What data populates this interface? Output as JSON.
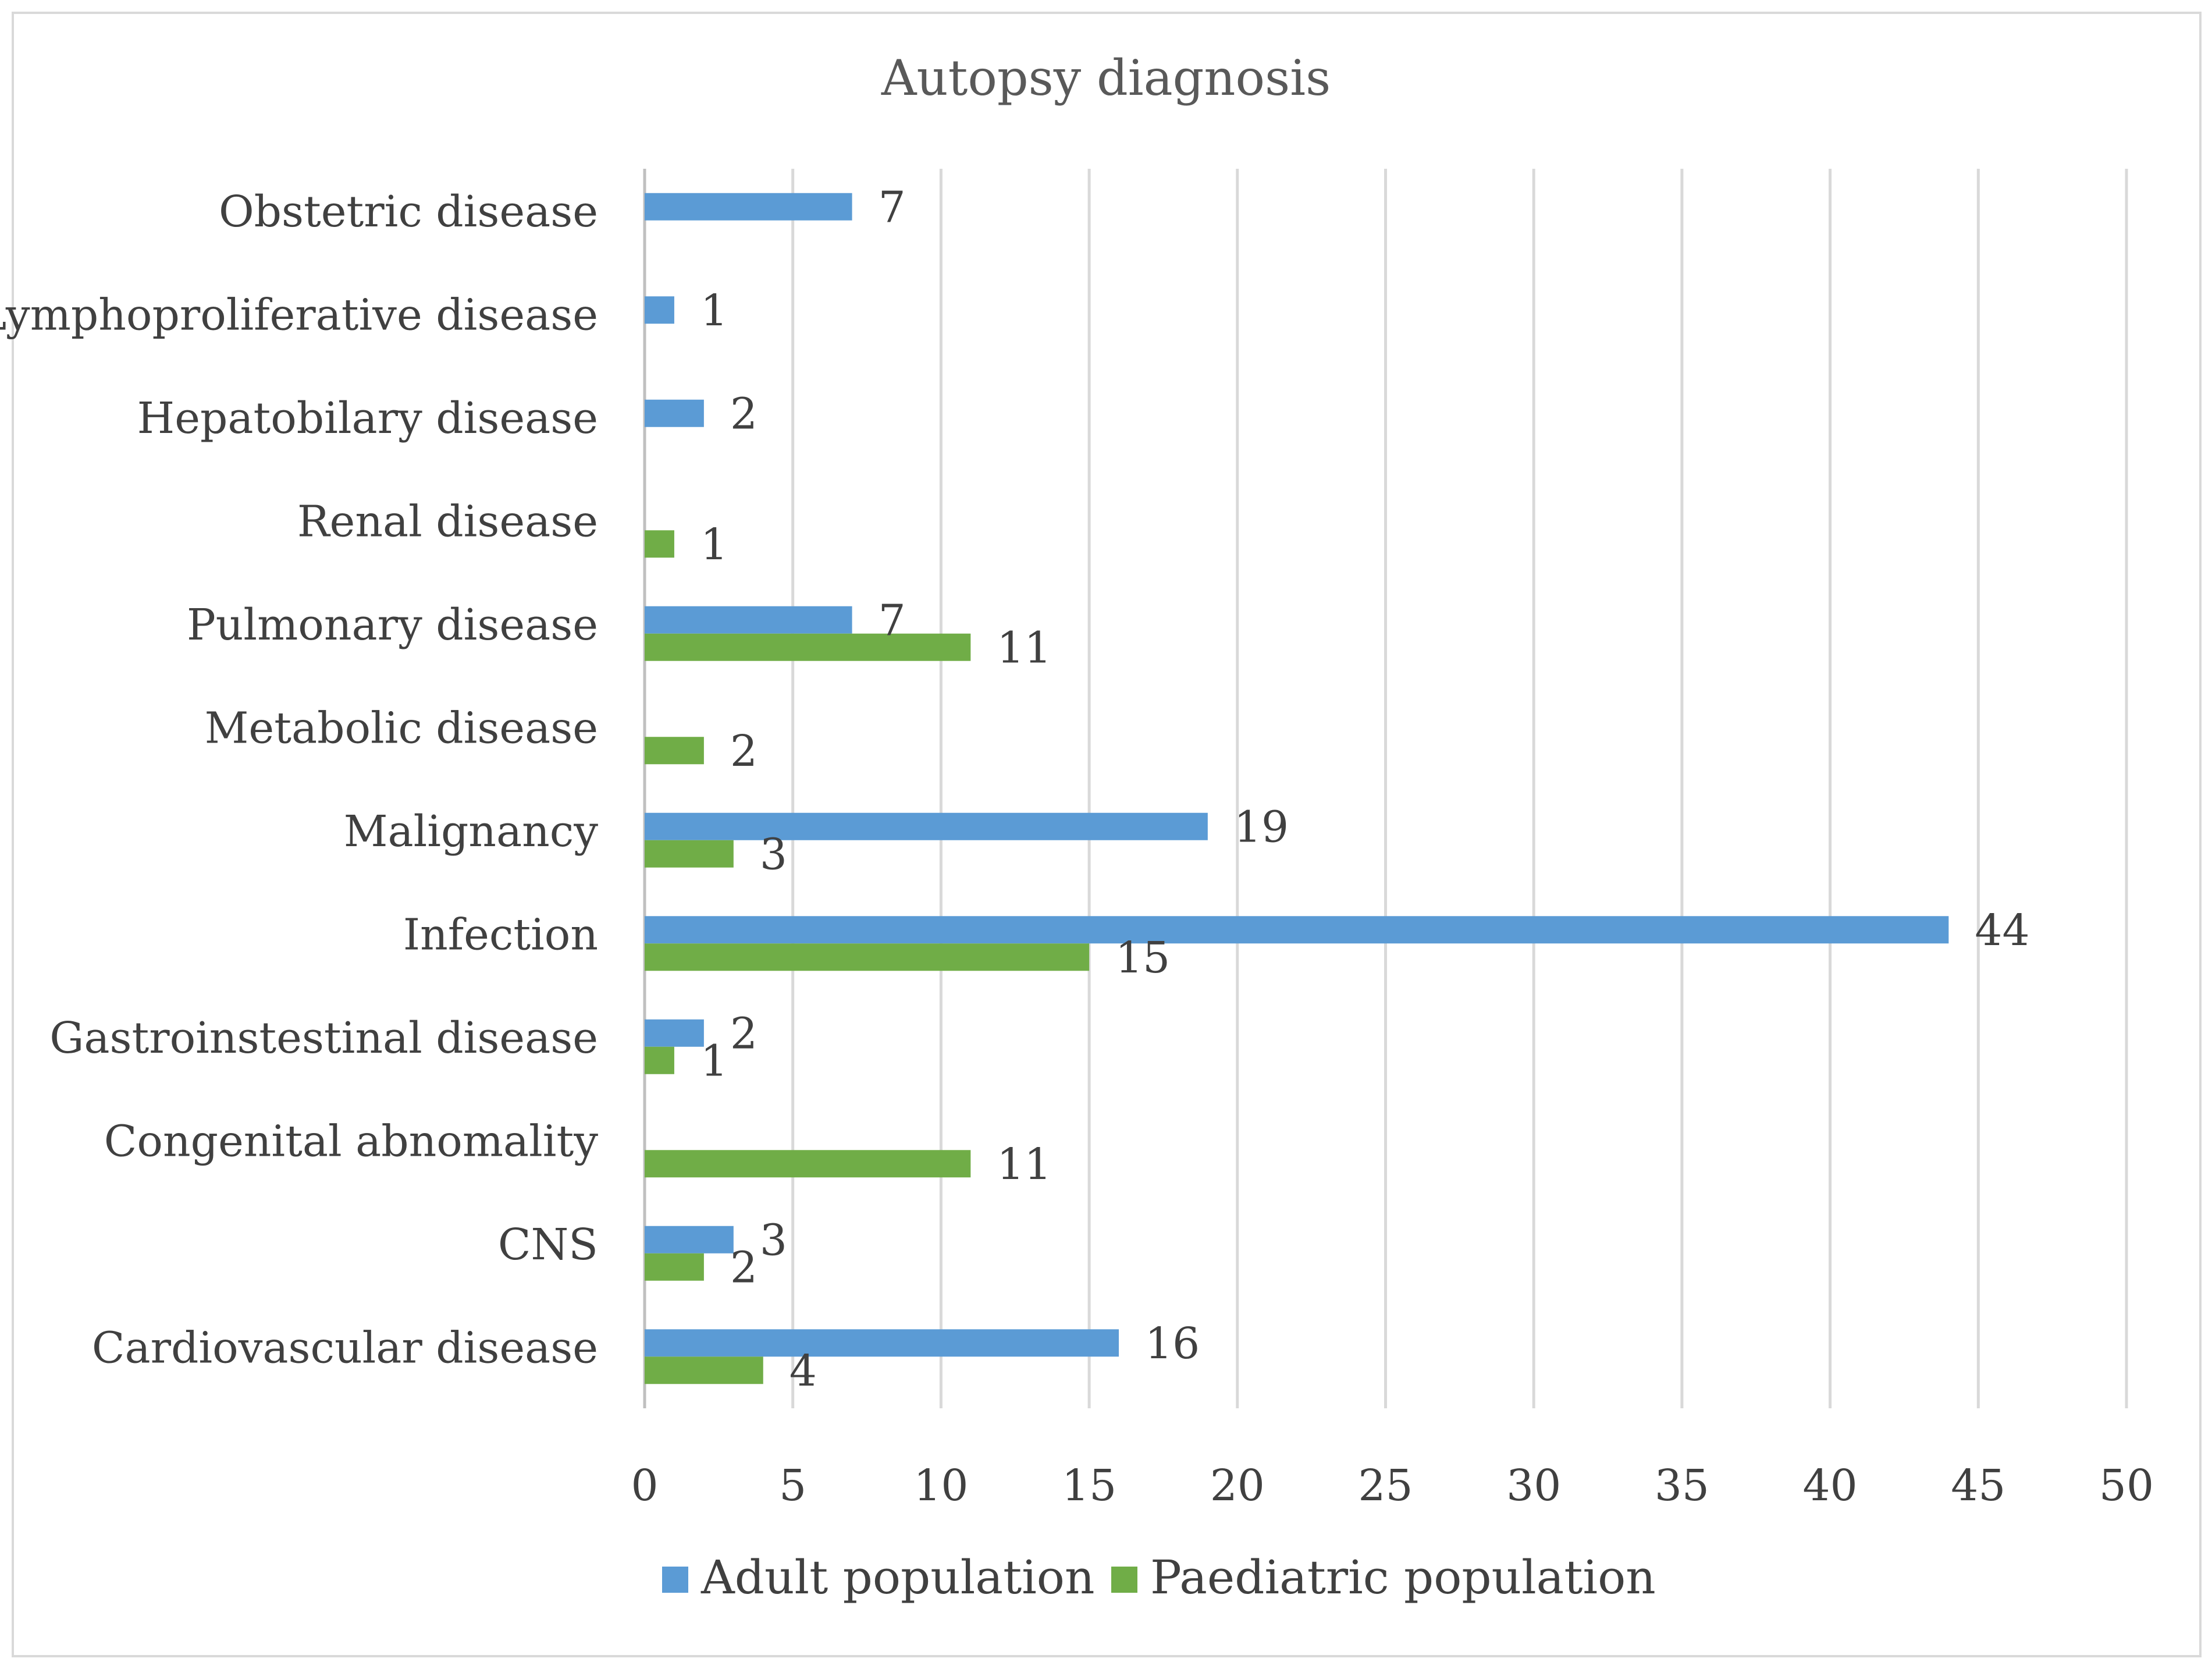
{
  "chart_data": {
    "type": "bar",
    "orientation": "horizontal",
    "title": "Autopsy diagnosis",
    "xlabel": "",
    "ylabel": "",
    "xlim": [
      0,
      50
    ],
    "x_ticks": [
      0,
      5,
      10,
      15,
      20,
      25,
      30,
      35,
      40,
      45,
      50
    ],
    "grid": "vertical",
    "legend_position": "bottom",
    "categories": [
      "Cardiovascular disease",
      "CNS",
      "Congenital abnomality",
      "Gastroinstestinal disease",
      "Infection",
      "Malignancy",
      "Metabolic disease",
      "Pulmonary disease",
      "Renal disease",
      "Hepatobilary disease",
      "Lymphoproliferative disease",
      "Obstetric disease"
    ],
    "series": [
      {
        "name": "Adult population",
        "color": "#5B9BD5",
        "values": [
          16,
          3,
          null,
          2,
          44,
          19,
          null,
          7,
          null,
          2,
          1,
          7
        ]
      },
      {
        "name": "Paediatric population",
        "color": "#70AD47",
        "values": [
          4,
          2,
          11,
          1,
          15,
          3,
          2,
          11,
          1,
          null,
          null,
          null
        ]
      }
    ],
    "colors": {
      "grid": "#D9D9D9",
      "frame": "#D9D9D9",
      "axis": "#BFBFBF",
      "text": "#404040",
      "title": "#595959"
    }
  }
}
